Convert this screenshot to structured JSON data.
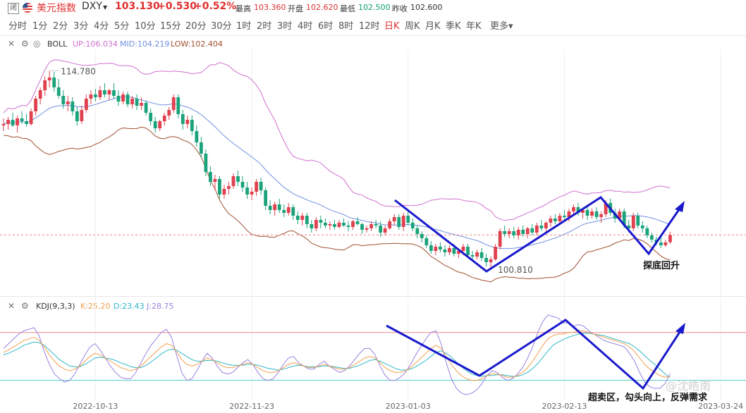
{
  "header": {
    "closed_badge": "闭",
    "name": "美元指数",
    "symbol": "DXY",
    "price": "103.130",
    "change": "+0.530",
    "change_pct": "+0.52%",
    "quotes": [
      {
        "label": "最高",
        "value": "103.360",
        "color": "#e03030"
      },
      {
        "label": "开盘",
        "value": "102.620",
        "color": "#e03030"
      },
      {
        "label": "最低",
        "value": "102.500",
        "color": "#0e9f6e"
      },
      {
        "label": "昨收",
        "value": "102.600",
        "color": "#333333"
      }
    ]
  },
  "periods": [
    "分时",
    "1分",
    "2分",
    "3分",
    "4分",
    "5分",
    "10分",
    "15分",
    "20分",
    "30分",
    "1时",
    "2时",
    "3时",
    "4时",
    "6时",
    "8时",
    "12时",
    "日K",
    "周K",
    "月K",
    "季K",
    "年K",
    "更多"
  ],
  "active_period": "日K",
  "boll": {
    "name": "BOLL",
    "up": "UP:106.034",
    "mid": "MID:104.219",
    "low": "LOW:102.404"
  },
  "kdj": {
    "name": "KDJ(9,3,3)",
    "k": "K:25.20",
    "d": "D:23.43",
    "j": "J:28.75"
  },
  "annotations": {
    "high": "114.780",
    "low": "100.810",
    "price_note": "探底回升",
    "kdj_note": "超卖区，勾头向上，反弹需求",
    "watermark": "@沈皓南"
  },
  "colors": {
    "up": "#e0414f",
    "down": "#1aa37a",
    "boll_up": "#d070d0",
    "boll_mid": "#6f8fe0",
    "boll_low": "#a05030",
    "k": "#f0a050",
    "d": "#30b8c8",
    "j": "#9a80e0",
    "trend": "#1a1acc"
  },
  "chart_data": {
    "type": "candlestick",
    "x_ticks": [
      "2022-10-13",
      "2022-11-23",
      "2023-01-03",
      "2023-02-13",
      "2023-03-24"
    ],
    "x_tick_index": [
      20,
      54,
      88,
      122,
      156
    ],
    "main_ylim": [
      99.2,
      116.2
    ],
    "candles": [
      [
        110.9,
        111.4,
        110.5,
        111.0
      ],
      [
        111.0,
        111.5,
        110.6,
        111.3
      ],
      [
        111.3,
        111.8,
        110.8,
        110.9
      ],
      [
        110.9,
        111.6,
        110.4,
        111.4
      ],
      [
        111.4,
        111.9,
        111.0,
        111.2
      ],
      [
        111.2,
        111.7,
        110.8,
        111.0
      ],
      [
        111.0,
        112.1,
        110.9,
        111.9
      ],
      [
        111.9,
        113.0,
        111.6,
        112.8
      ],
      [
        112.8,
        113.6,
        112.4,
        113.4
      ],
      [
        113.4,
        114.4,
        113.0,
        114.1
      ],
      [
        114.1,
        114.78,
        113.6,
        114.3
      ],
      [
        114.3,
        114.7,
        113.3,
        113.6
      ],
      [
        113.6,
        114.2,
        112.8,
        113.0
      ],
      [
        113.0,
        113.4,
        112.1,
        112.4
      ],
      [
        112.4,
        113.0,
        111.9,
        112.6
      ],
      [
        112.6,
        112.9,
        111.6,
        111.9
      ],
      [
        111.9,
        112.2,
        110.9,
        111.2
      ],
      [
        111.2,
        112.3,
        111.0,
        112.0
      ],
      [
        112.0,
        113.1,
        111.8,
        112.8
      ],
      [
        112.8,
        113.4,
        112.4,
        113.1
      ],
      [
        113.1,
        113.5,
        112.6,
        112.9
      ],
      [
        112.9,
        113.7,
        112.7,
        113.4
      ],
      [
        113.4,
        113.9,
        112.9,
        113.1
      ],
      [
        113.1,
        113.5,
        112.7,
        113.4
      ],
      [
        113.4,
        113.9,
        112.8,
        113.0
      ],
      [
        113.0,
        113.4,
        112.3,
        112.6
      ],
      [
        112.6,
        113.3,
        112.4,
        113.1
      ],
      [
        113.1,
        113.3,
        112.2,
        112.4
      ],
      [
        112.4,
        113.0,
        112.1,
        112.8
      ],
      [
        112.8,
        113.1,
        112.0,
        112.3
      ],
      [
        112.3,
        112.9,
        112.0,
        112.5
      ],
      [
        112.5,
        112.7,
        111.6,
        111.8
      ],
      [
        111.8,
        112.1,
        110.9,
        111.2
      ],
      [
        111.2,
        111.5,
        110.4,
        110.7
      ],
      [
        110.7,
        111.3,
        110.5,
        111.2
      ],
      [
        111.2,
        111.8,
        110.9,
        111.6
      ],
      [
        111.6,
        112.2,
        111.3,
        112.0
      ],
      [
        112.0,
        113.1,
        111.8,
        112.9
      ],
      [
        112.9,
        113.1,
        111.4,
        111.7
      ],
      [
        111.7,
        112.0,
        110.6,
        111.0
      ],
      [
        111.0,
        111.6,
        110.7,
        111.3
      ],
      [
        111.3,
        111.6,
        110.2,
        110.5
      ],
      [
        110.5,
        110.9,
        109.4,
        109.7
      ],
      [
        109.7,
        110.1,
        108.6,
        108.9
      ],
      [
        108.9,
        109.2,
        107.3,
        107.6
      ],
      [
        107.6,
        108.0,
        106.6,
        106.9
      ],
      [
        106.9,
        107.4,
        106.3,
        107.1
      ],
      [
        107.1,
        107.3,
        105.7,
        106.0
      ],
      [
        106.0,
        106.7,
        105.7,
        106.4
      ],
      [
        106.4,
        106.9,
        106.0,
        106.6
      ],
      [
        106.6,
        107.5,
        106.4,
        107.3
      ],
      [
        107.3,
        107.7,
        106.6,
        106.9
      ],
      [
        106.9,
        107.3,
        106.2,
        106.5
      ],
      [
        106.5,
        106.9,
        105.7,
        106.0
      ],
      [
        106.0,
        106.5,
        105.6,
        106.2
      ],
      [
        106.2,
        107.1,
        105.9,
        106.9
      ],
      [
        106.9,
        107.2,
        106.0,
        106.3
      ],
      [
        106.3,
        106.5,
        104.9,
        105.2
      ],
      [
        105.2,
        105.6,
        104.6,
        104.9
      ],
      [
        104.9,
        105.5,
        104.5,
        105.3
      ],
      [
        105.3,
        105.7,
        104.7,
        104.9
      ],
      [
        104.9,
        105.3,
        104.4,
        104.7
      ],
      [
        104.7,
        105.4,
        104.5,
        105.1
      ],
      [
        105.1,
        105.3,
        104.2,
        104.5
      ],
      [
        104.5,
        104.8,
        103.9,
        104.2
      ],
      [
        104.2,
        104.7,
        103.8,
        104.5
      ],
      [
        104.5,
        104.7,
        103.6,
        103.9
      ],
      [
        103.9,
        104.2,
        103.3,
        103.6
      ],
      [
        103.6,
        104.4,
        103.4,
        104.2
      ],
      [
        104.2,
        104.5,
        103.6,
        104.0
      ],
      [
        104.0,
        104.3,
        103.6,
        103.8
      ],
      [
        103.8,
        104.1,
        103.5,
        103.9
      ],
      [
        103.9,
        104.2,
        103.5,
        103.7
      ],
      [
        103.7,
        104.2,
        103.6,
        104.0
      ],
      [
        104.0,
        104.3,
        103.7,
        103.8
      ],
      [
        103.8,
        104.1,
        103.4,
        103.7
      ],
      [
        103.7,
        104.2,
        103.5,
        104.1
      ],
      [
        104.1,
        104.4,
        103.8,
        103.9
      ],
      [
        103.9,
        104.0,
        103.2,
        103.5
      ],
      [
        103.5,
        103.8,
        103.3,
        103.6
      ],
      [
        103.6,
        104.1,
        103.4,
        103.9
      ],
      [
        103.9,
        104.2,
        103.6,
        103.8
      ],
      [
        103.8,
        104.1,
        103.0,
        103.3
      ],
      [
        103.3,
        103.8,
        103.1,
        103.6
      ],
      [
        103.6,
        104.3,
        103.5,
        104.1
      ],
      [
        104.1,
        104.6,
        103.8,
        104.4
      ],
      [
        104.4,
        104.6,
        103.5,
        103.7
      ],
      [
        103.7,
        104.7,
        103.4,
        104.5
      ],
      [
        104.5,
        104.8,
        103.8,
        104.0
      ],
      [
        104.0,
        104.3,
        103.4,
        103.6
      ],
      [
        103.6,
        103.8,
        102.9,
        103.2
      ],
      [
        103.2,
        103.4,
        102.6,
        102.9
      ],
      [
        102.9,
        103.1,
        102.2,
        102.4
      ],
      [
        102.4,
        102.7,
        101.8,
        102.0
      ],
      [
        102.0,
        102.5,
        101.7,
        102.3
      ],
      [
        102.3,
        102.6,
        101.9,
        102.1
      ],
      [
        102.1,
        102.4,
        101.6,
        101.9
      ],
      [
        101.9,
        102.4,
        101.7,
        102.2
      ],
      [
        102.2,
        102.5,
        101.6,
        101.8
      ],
      [
        101.8,
        102.2,
        101.5,
        102.0
      ],
      [
        102.0,
        102.5,
        101.7,
        102.3
      ],
      [
        102.3,
        102.5,
        101.5,
        101.7
      ],
      [
        101.7,
        102.0,
        101.3,
        101.6
      ],
      [
        101.6,
        102.1,
        101.4,
        101.9
      ],
      [
        101.9,
        102.2,
        101.3,
        101.5
      ],
      [
        101.5,
        101.8,
        100.9,
        101.2
      ],
      [
        101.2,
        101.6,
        100.81,
        101.4
      ],
      [
        101.4,
        102.5,
        101.3,
        102.3
      ],
      [
        102.3,
        103.6,
        102.1,
        103.4
      ],
      [
        103.4,
        103.8,
        103.0,
        103.2
      ],
      [
        103.2,
        103.6,
        102.9,
        103.4
      ],
      [
        103.4,
        103.7,
        102.9,
        103.1
      ],
      [
        103.1,
        103.7,
        102.8,
        103.5
      ],
      [
        103.5,
        103.8,
        103.0,
        103.2
      ],
      [
        103.2,
        103.7,
        102.9,
        103.6
      ],
      [
        103.6,
        103.9,
        103.1,
        103.3
      ],
      [
        103.3,
        104.0,
        103.1,
        103.8
      ],
      [
        103.8,
        104.2,
        103.4,
        103.6
      ],
      [
        103.6,
        104.1,
        103.3,
        104.0
      ],
      [
        104.0,
        104.5,
        103.7,
        104.3
      ],
      [
        104.3,
        104.6,
        103.9,
        104.1
      ],
      [
        104.1,
        104.7,
        103.9,
        104.5
      ],
      [
        104.5,
        104.9,
        104.2,
        104.4
      ],
      [
        104.4,
        105.0,
        104.1,
        104.8
      ],
      [
        104.8,
        105.3,
        104.5,
        105.1
      ],
      [
        105.1,
        105.4,
        104.5,
        104.7
      ],
      [
        104.7,
        105.0,
        104.3,
        104.9
      ],
      [
        104.9,
        105.2,
        104.2,
        104.5
      ],
      [
        104.5,
        105.0,
        104.3,
        104.8
      ],
      [
        104.8,
        105.1,
        104.2,
        104.4
      ],
      [
        104.4,
        104.8,
        104.0,
        104.6
      ],
      [
        104.6,
        105.6,
        104.4,
        105.4
      ],
      [
        105.4,
        105.7,
        104.5,
        104.7
      ],
      [
        104.7,
        105.0,
        104.0,
        104.3
      ],
      [
        104.3,
        105.0,
        104.1,
        104.8
      ],
      [
        104.8,
        105.0,
        103.6,
        103.8
      ],
      [
        103.8,
        104.2,
        103.3,
        103.6
      ],
      [
        103.6,
        104.7,
        103.4,
        104.5
      ],
      [
        104.5,
        104.7,
        103.6,
        103.8
      ],
      [
        103.8,
        104.1,
        103.3,
        103.6
      ],
      [
        103.6,
        103.8,
        102.9,
        103.1
      ],
      [
        103.1,
        103.3,
        102.6,
        102.8
      ],
      [
        102.8,
        103.0,
        102.4,
        102.6
      ],
      [
        102.6,
        103.0,
        102.2,
        102.4
      ],
      [
        102.4,
        102.8,
        102.3,
        102.6
      ],
      [
        102.62,
        103.36,
        102.5,
        103.13
      ]
    ],
    "kdj_ylim": [
      -5,
      108
    ],
    "kdj_k": [
      55,
      58,
      62,
      66,
      70,
      72,
      74,
      70,
      62,
      52,
      44,
      38,
      34,
      32,
      34,
      38,
      44,
      50,
      54,
      52,
      48,
      44,
      40,
      36,
      34,
      32,
      34,
      38,
      44,
      50,
      56,
      62,
      66,
      64,
      56,
      46,
      40,
      38,
      40,
      44,
      48,
      46,
      42,
      38,
      36,
      36,
      38,
      40,
      42,
      40,
      36,
      32,
      30,
      30,
      32,
      36,
      40,
      42,
      40,
      38,
      36,
      36,
      38,
      40,
      38,
      36,
      34,
      34,
      36,
      40,
      44,
      48,
      50,
      48,
      42,
      36,
      32,
      30,
      30,
      32,
      36,
      42,
      48,
      54,
      60,
      64,
      60,
      50,
      40,
      32,
      26,
      22,
      20,
      20,
      22,
      26,
      28,
      28,
      26,
      24,
      24,
      26,
      30,
      36,
      44,
      54,
      64,
      72,
      76,
      78,
      78,
      80,
      80,
      82,
      82,
      80,
      78,
      76,
      74,
      72,
      70,
      68,
      66,
      62,
      56,
      48,
      40,
      34,
      30,
      26,
      24,
      25
    ],
    "kdj_d": [
      52,
      54,
      57,
      60,
      64,
      66,
      68,
      67,
      64,
      58,
      52,
      46,
      42,
      38,
      37,
      37,
      40,
      44,
      48,
      49,
      48,
      47,
      45,
      42,
      40,
      37,
      36,
      36,
      39,
      43,
      48,
      53,
      57,
      59,
      58,
      54,
      50,
      46,
      44,
      44,
      45,
      45,
      44,
      42,
      40,
      39,
      39,
      39,
      40,
      40,
      39,
      37,
      35,
      34,
      33,
      34,
      36,
      38,
      39,
      38,
      37,
      37,
      37,
      38,
      38,
      37,
      36,
      35,
      35,
      37,
      39,
      42,
      45,
      46,
      44,
      41,
      38,
      35,
      33,
      33,
      34,
      37,
      41,
      45,
      50,
      55,
      57,
      54,
      49,
      43,
      37,
      32,
      28,
      26,
      25,
      26,
      26,
      27,
      27,
      26,
      25,
      25,
      27,
      30,
      35,
      41,
      49,
      57,
      64,
      68,
      71,
      74,
      76,
      78,
      79,
      79,
      78,
      77,
      76,
      74,
      72,
      70,
      68,
      66,
      62,
      57,
      51,
      45,
      40,
      34,
      28,
      23.43
    ],
    "kdj_j": [
      60,
      66,
      72,
      78,
      82,
      84,
      86,
      76,
      56,
      40,
      28,
      22,
      18,
      20,
      28,
      40,
      52,
      62,
      66,
      58,
      48,
      38,
      30,
      24,
      22,
      22,
      30,
      42,
      54,
      64,
      72,
      80,
      84,
      74,
      52,
      30,
      20,
      22,
      32,
      44,
      54,
      48,
      38,
      30,
      28,
      30,
      36,
      42,
      46,
      40,
      30,
      22,
      20,
      22,
      30,
      40,
      48,
      50,
      42,
      38,
      34,
      34,
      40,
      44,
      38,
      34,
      30,
      32,
      38,
      46,
      54,
      60,
      60,
      52,
      38,
      26,
      20,
      20,
      24,
      30,
      40,
      52,
      62,
      72,
      80,
      82,
      66,
      42,
      22,
      10,
      4,
      2,
      4,
      8,
      16,
      26,
      32,
      30,
      24,
      20,
      22,
      28,
      36,
      48,
      62,
      80,
      94,
      102,
      100,
      98,
      92,
      92,
      88,
      90,
      88,
      82,
      78,
      74,
      70,
      68,
      66,
      64,
      62,
      54,
      44,
      30,
      18,
      12,
      10,
      10,
      16,
      28.75
    ],
    "kdj_levels": [
      80,
      20
    ]
  }
}
